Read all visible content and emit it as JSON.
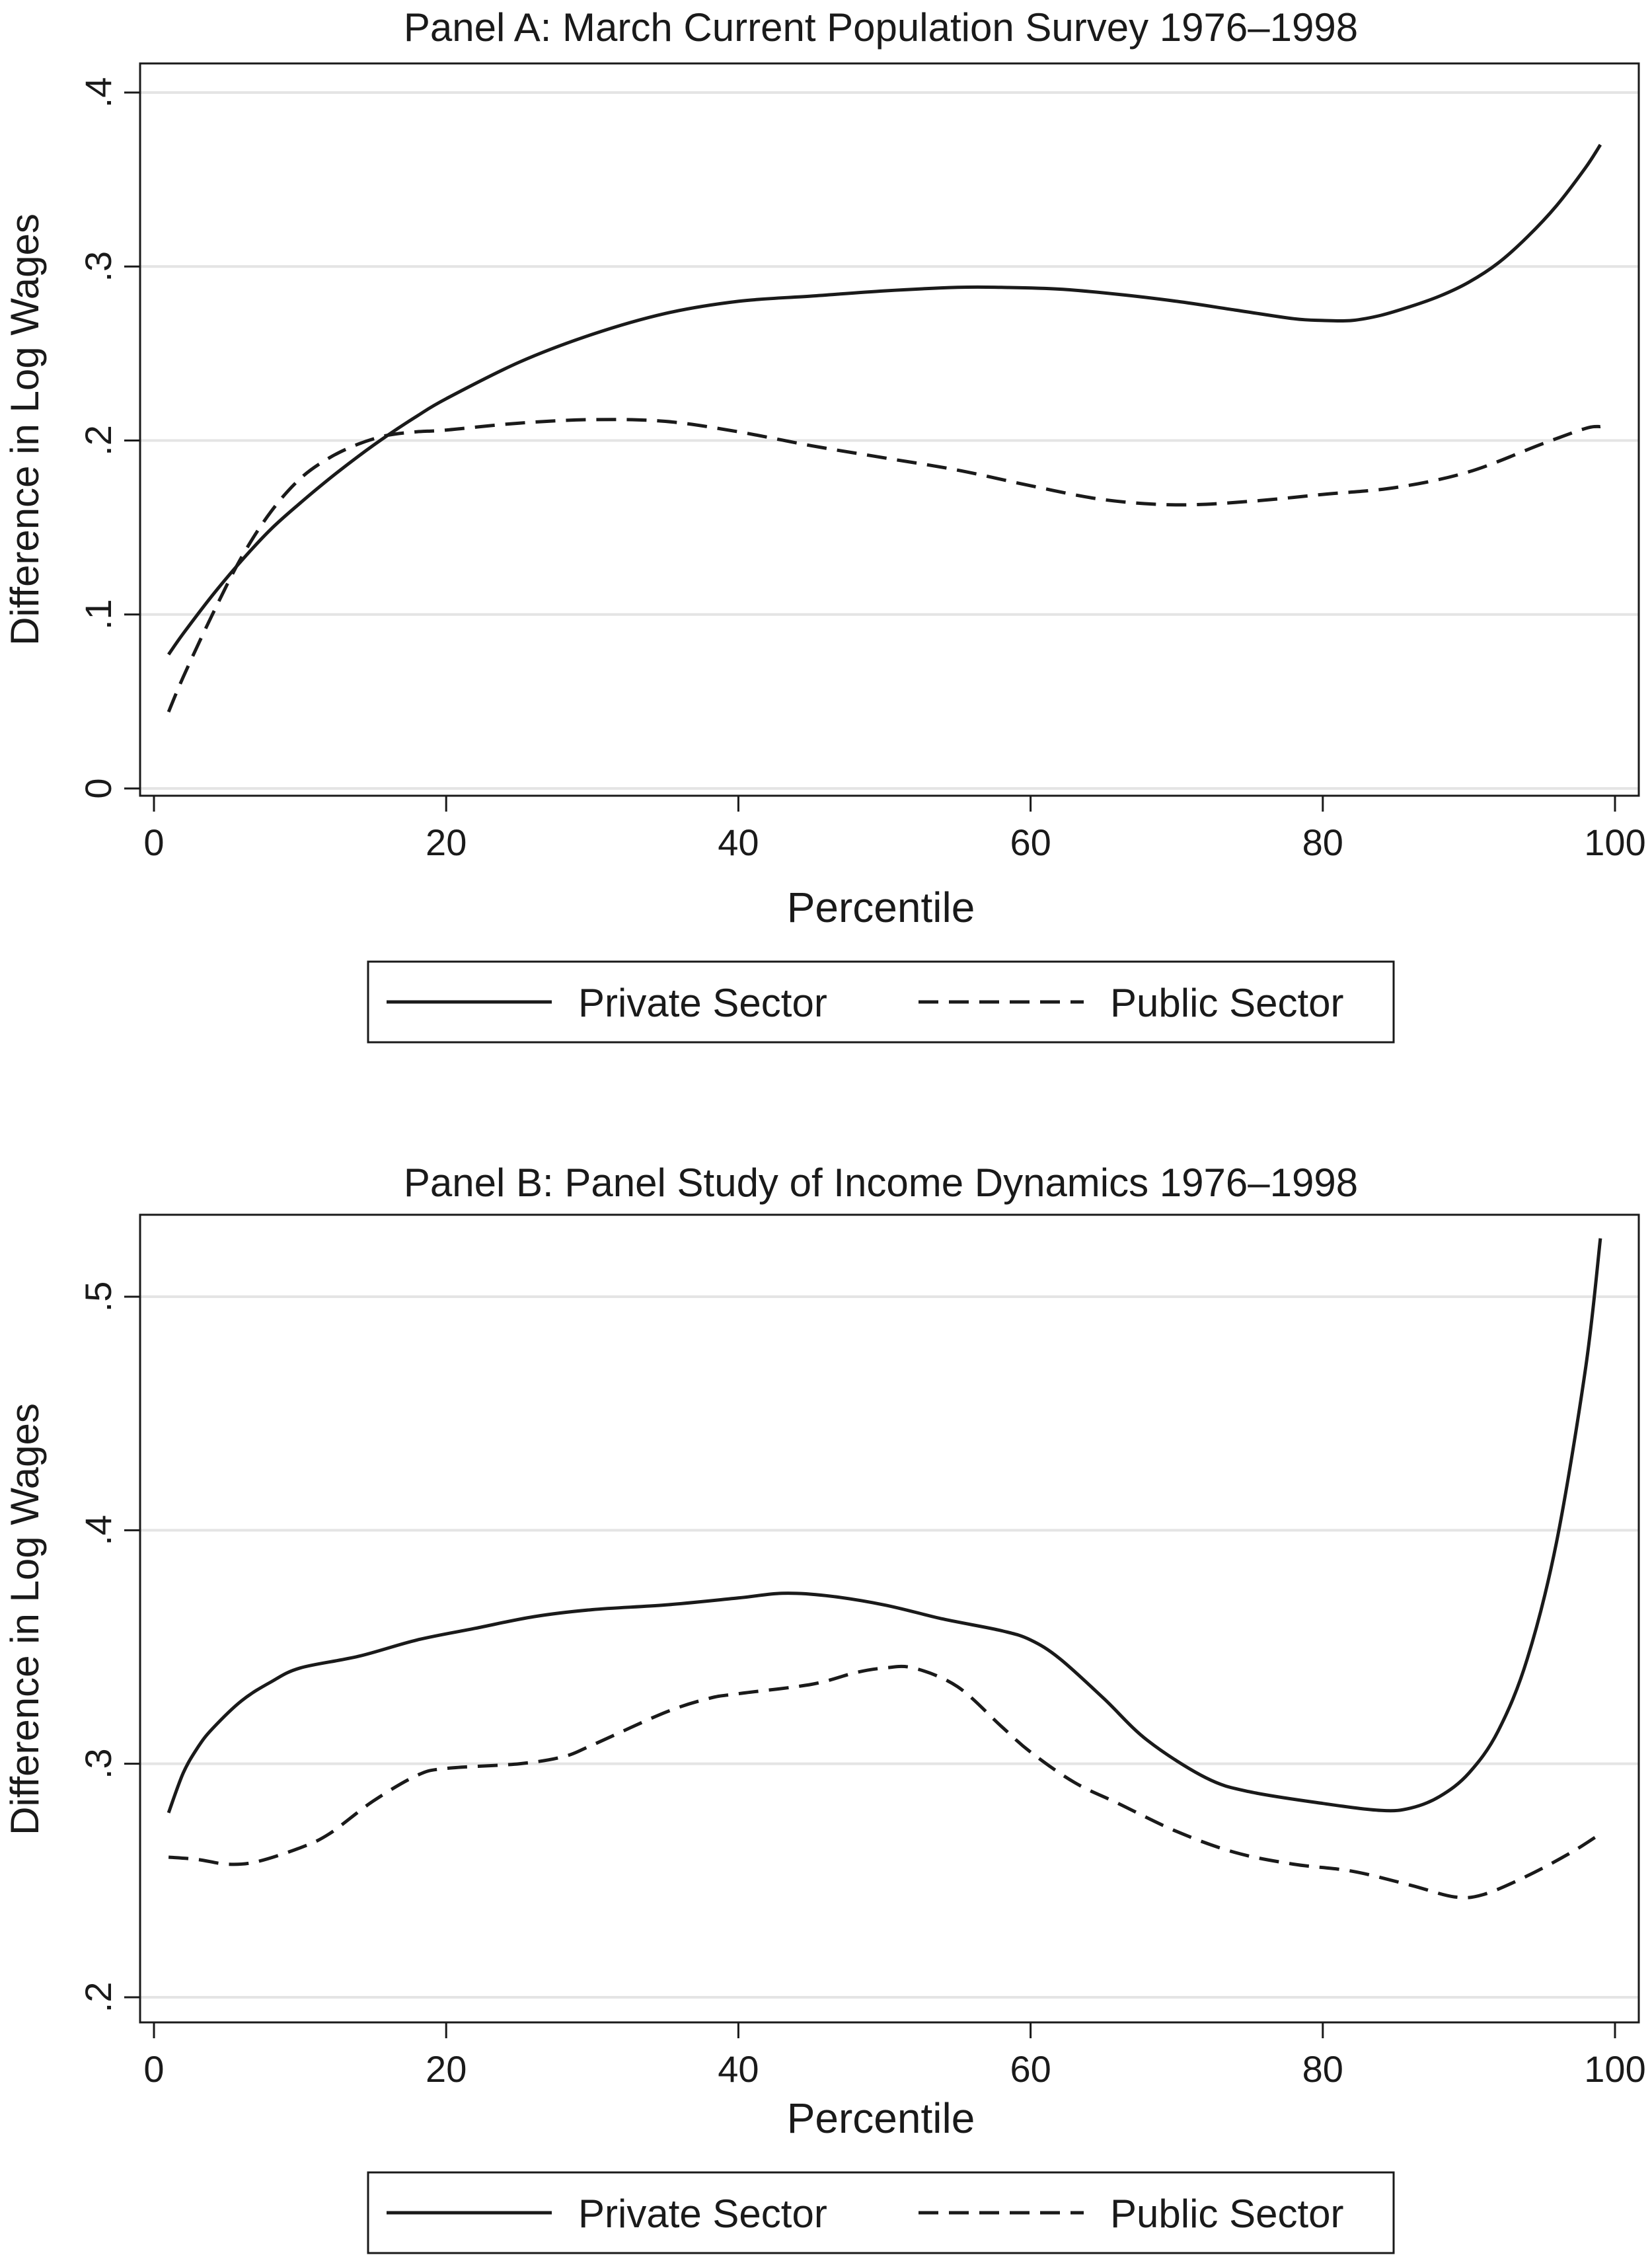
{
  "chart_data": [
    {
      "type": "line",
      "title": "Panel A: March Current Population Survey 1976–1998",
      "xlabel": "Percentile",
      "ylabel": "Difference in Log Wages",
      "xlim": [
        0,
        100
      ],
      "ylim": [
        0,
        0.4
      ],
      "x_ticks": [
        0,
        20,
        40,
        60,
        80,
        100
      ],
      "x_tick_labels": [
        "0",
        "20",
        "40",
        "60",
        "80",
        "100"
      ],
      "y_ticks": [
        0,
        0.1,
        0.2,
        0.3,
        0.4
      ],
      "y_tick_labels": [
        "0",
        ".1",
        ".2",
        ".3",
        ".4"
      ],
      "grid": "horizontal",
      "legend_position": "bottom",
      "series": [
        {
          "name": "Private Sector",
          "style": "solid",
          "x": [
            1,
            2,
            4,
            6,
            8,
            10,
            12,
            14,
            16,
            18,
            20,
            25,
            30,
            35,
            40,
            45,
            50,
            55,
            58,
            62,
            66,
            70,
            74,
            78,
            80,
            82,
            84,
            86,
            88,
            90,
            92,
            94,
            96,
            98,
            99
          ],
          "y": [
            0.077,
            0.089,
            0.111,
            0.131,
            0.149,
            0.164,
            0.178,
            0.191,
            0.203,
            0.214,
            0.224,
            0.245,
            0.261,
            0.273,
            0.28,
            0.283,
            0.286,
            0.288,
            0.288,
            0.287,
            0.284,
            0.28,
            0.275,
            0.27,
            0.269,
            0.269,
            0.272,
            0.277,
            0.283,
            0.291,
            0.302,
            0.317,
            0.335,
            0.357,
            0.37
          ]
        },
        {
          "name": "Public Sector",
          "style": "dashed",
          "x": [
            1,
            2,
            4,
            6,
            8,
            10,
            12,
            14,
            16,
            18,
            20,
            25,
            30,
            35,
            40,
            45,
            50,
            55,
            60,
            65,
            70,
            75,
            80,
            85,
            90,
            95,
            98,
            99
          ],
          "y": [
            0.044,
            0.064,
            0.1,
            0.133,
            0.159,
            0.178,
            0.19,
            0.198,
            0.203,
            0.205,
            0.206,
            0.21,
            0.212,
            0.211,
            0.205,
            0.197,
            0.19,
            0.183,
            0.174,
            0.166,
            0.163,
            0.165,
            0.169,
            0.173,
            0.182,
            0.198,
            0.207,
            0.208
          ]
        }
      ]
    },
    {
      "type": "line",
      "title": "Panel B: Panel Study of Income Dynamics 1976–1998",
      "xlabel": "Percentile",
      "ylabel": "Difference in Log Wages",
      "xlim": [
        0,
        100
      ],
      "ylim": [
        0.2,
        0.5
      ],
      "x_ticks": [
        0,
        20,
        40,
        60,
        80,
        100
      ],
      "x_tick_labels": [
        "0",
        "20",
        "40",
        "60",
        "80",
        "100"
      ],
      "y_ticks": [
        0.2,
        0.3,
        0.4,
        0.5
      ],
      "y_tick_labels": [
        ".2",
        ".3",
        ".4",
        ".5"
      ],
      "grid": "horizontal",
      "legend_position": "bottom",
      "series": [
        {
          "name": "Private Sector",
          "style": "solid",
          "x": [
            1,
            2,
            3,
            4,
            6,
            8,
            10,
            14,
            18,
            22,
            26,
            30,
            35,
            40,
            43,
            46,
            50,
            54,
            58,
            60,
            62,
            65,
            68,
            72,
            75,
            80,
            84,
            86,
            88,
            90,
            92,
            94,
            96,
            98,
            99
          ],
          "y": [
            0.279,
            0.296,
            0.307,
            0.315,
            0.327,
            0.335,
            0.341,
            0.346,
            0.353,
            0.358,
            0.363,
            0.366,
            0.368,
            0.371,
            0.373,
            0.372,
            0.368,
            0.362,
            0.357,
            0.353,
            0.345,
            0.328,
            0.31,
            0.294,
            0.288,
            0.283,
            0.28,
            0.281,
            0.286,
            0.296,
            0.314,
            0.345,
            0.395,
            0.47,
            0.525
          ]
        },
        {
          "name": "Public Sector",
          "style": "dashed",
          "x": [
            1,
            3,
            5,
            7,
            10,
            12,
            15,
            18,
            20,
            25,
            28,
            30,
            35,
            38,
            40,
            45,
            48,
            50,
            52,
            55,
            58,
            60,
            63,
            66,
            70,
            74,
            78,
            82,
            86,
            89,
            91,
            94,
            97,
            99
          ],
          "y": [
            0.26,
            0.259,
            0.257,
            0.258,
            0.264,
            0.27,
            0.284,
            0.295,
            0.298,
            0.3,
            0.303,
            0.308,
            0.322,
            0.328,
            0.33,
            0.334,
            0.339,
            0.341,
            0.341,
            0.333,
            0.316,
            0.305,
            0.292,
            0.283,
            0.271,
            0.262,
            0.257,
            0.254,
            0.248,
            0.243,
            0.244,
            0.252,
            0.262,
            0.27
          ]
        }
      ]
    }
  ]
}
